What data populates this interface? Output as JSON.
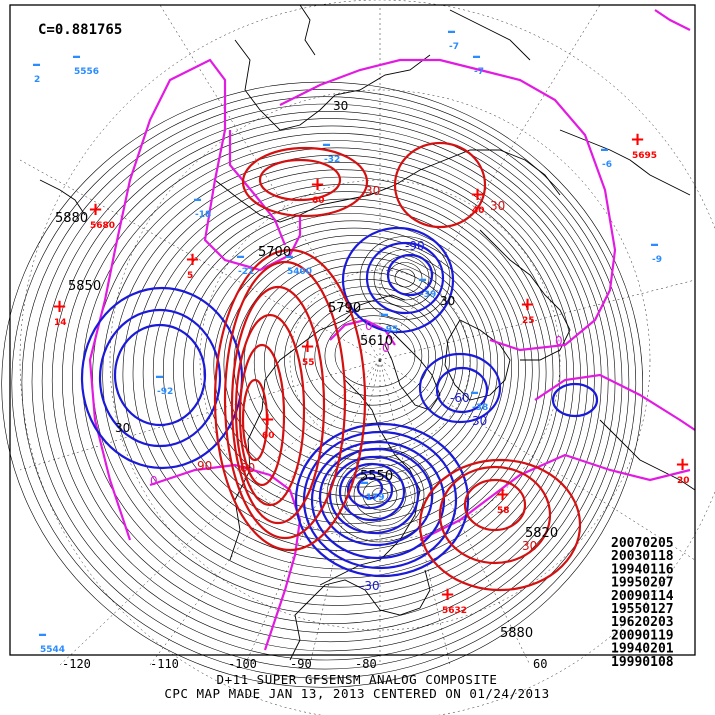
{
  "correlation": "C=0.881765",
  "footer": {
    "line1": "D+11 SUPER GFSENSM ANALOG COMPOSITE",
    "line2": "CPC MAP MADE JAN 13, 2013 CENTERED ON 01/24/2013"
  },
  "longitudes": [
    "-120",
    "-110",
    "-100",
    "-90",
    "-80",
    "60"
  ],
  "analog_dates": [
    "20070205",
    "20030118",
    "19940116",
    "19950207",
    "20090114",
    "19550127",
    "19620203",
    "20090119",
    "19940201",
    "19990108"
  ],
  "height_contour_labels": [
    "5880",
    "5850",
    "5820",
    "5880",
    "5790",
    "5700",
    "5610",
    "5550"
  ],
  "anomaly_labels": [
    "30",
    "30",
    "0",
    "30",
    "0",
    "90",
    "60",
    "30",
    "30",
    "0",
    "-90",
    "-60",
    "0",
    "-30",
    "30",
    "30"
  ],
  "highs": [
    {
      "label": "5",
      "color": "#ff0000"
    },
    {
      "label": "5680",
      "color": "#ff0000"
    },
    {
      "label": "14",
      "color": "#ff0000"
    },
    {
      "label": "55",
      "color": "#ff0000"
    },
    {
      "label": "60",
      "color": "#ff0000"
    },
    {
      "label": "40",
      "color": "#ff0000"
    },
    {
      "label": "60",
      "color": "#ff0000"
    },
    {
      "label": "5632",
      "color": "#ff0000"
    },
    {
      "label": "58",
      "color": "#ff0000"
    },
    {
      "label": "5695",
      "color": "#ff0000"
    },
    {
      "label": "25",
      "color": "#ff0000"
    },
    {
      "label": "20",
      "color": "#ff0000"
    }
  ],
  "lows": [
    {
      "label": "2",
      "color": "#2a8cff"
    },
    {
      "label": "5556",
      "color": "#2a8cff"
    },
    {
      "label": "-7",
      "color": "#2a8cff"
    },
    {
      "label": "-7",
      "color": "#2a8cff"
    },
    {
      "label": "-32",
      "color": "#2a8cff"
    },
    {
      "label": "-18",
      "color": "#2a8cff"
    },
    {
      "label": "-21",
      "color": "#2a8cff"
    },
    {
      "label": "5400",
      "color": "#2a8cff"
    },
    {
      "label": "-39",
      "color": "#2a8cff"
    },
    {
      "label": "-95",
      "color": "#2a8cff"
    },
    {
      "label": "-92",
      "color": "#2a8cff"
    },
    {
      "label": "-179",
      "color": "#2a8cff"
    },
    {
      "label": "-38",
      "color": "#2a8cff"
    },
    {
      "label": "5544",
      "color": "#2a8cff"
    },
    {
      "label": "-9",
      "color": "#2a8cff"
    },
    {
      "label": "-6",
      "color": "#2a8cff"
    }
  ]
}
